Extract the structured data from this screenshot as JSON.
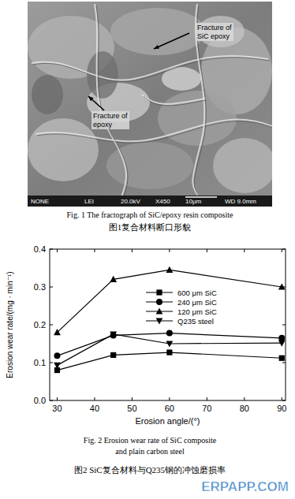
{
  "figure1": {
    "labels": [
      "Fracture of SiC epoxy",
      "Fracture of epoxy"
    ],
    "sem_info": [
      "NONE",
      "LEI",
      "20.0kV",
      "X450",
      "10μm",
      "WD 9.0mm"
    ],
    "caption_en": "Fig. 1   The fractograph of SiC/epoxy resin composite",
    "caption_zh": "图1复合材料断口形貌"
  },
  "chart_data": {
    "type": "line",
    "x_label": "Erosion angle/(°)",
    "y_label": "Erosion wear rate/(mg · min⁻¹)",
    "x": [
      30,
      45,
      60,
      90
    ],
    "series": [
      {
        "name": "600 μm SiC",
        "color": "#000000",
        "marker": "square",
        "values": [
          0.08,
          0.12,
          0.127,
          0.112
        ]
      },
      {
        "name": "240 μm SiC",
        "color": "#000000",
        "marker": "circle",
        "values": [
          0.118,
          0.172,
          0.178,
          0.165
        ]
      },
      {
        "name": "120 μm SiC",
        "color": "#000000",
        "marker": "triangle",
        "values": [
          0.18,
          0.32,
          0.345,
          0.3
        ]
      },
      {
        "name": "Q235 steel",
        "color": "#000000",
        "marker": "triangle_down",
        "values": [
          0.093,
          0.175,
          0.15,
          0.152
        ]
      }
    ],
    "xlim": [
      28,
      91
    ],
    "xticks": [
      30,
      40,
      50,
      60,
      70,
      80,
      90
    ],
    "ylim": [
      0,
      0.4
    ],
    "yticks": [
      {
        "value": 0,
        "label": "0.0"
      },
      0.1,
      0.2,
      0.3,
      0.4
    ],
    "legend": "top",
    "grid": false
  },
  "figure2": {
    "caption_en": [
      "Fig. 2   Erosion wear rate of SiC composite",
      "and plain carbon steel"
    ],
    "caption_zh": "图2  SiC复合材料与Q235钢的冲蚀磨损率"
  },
  "watermark": "ERPAPP.COM"
}
